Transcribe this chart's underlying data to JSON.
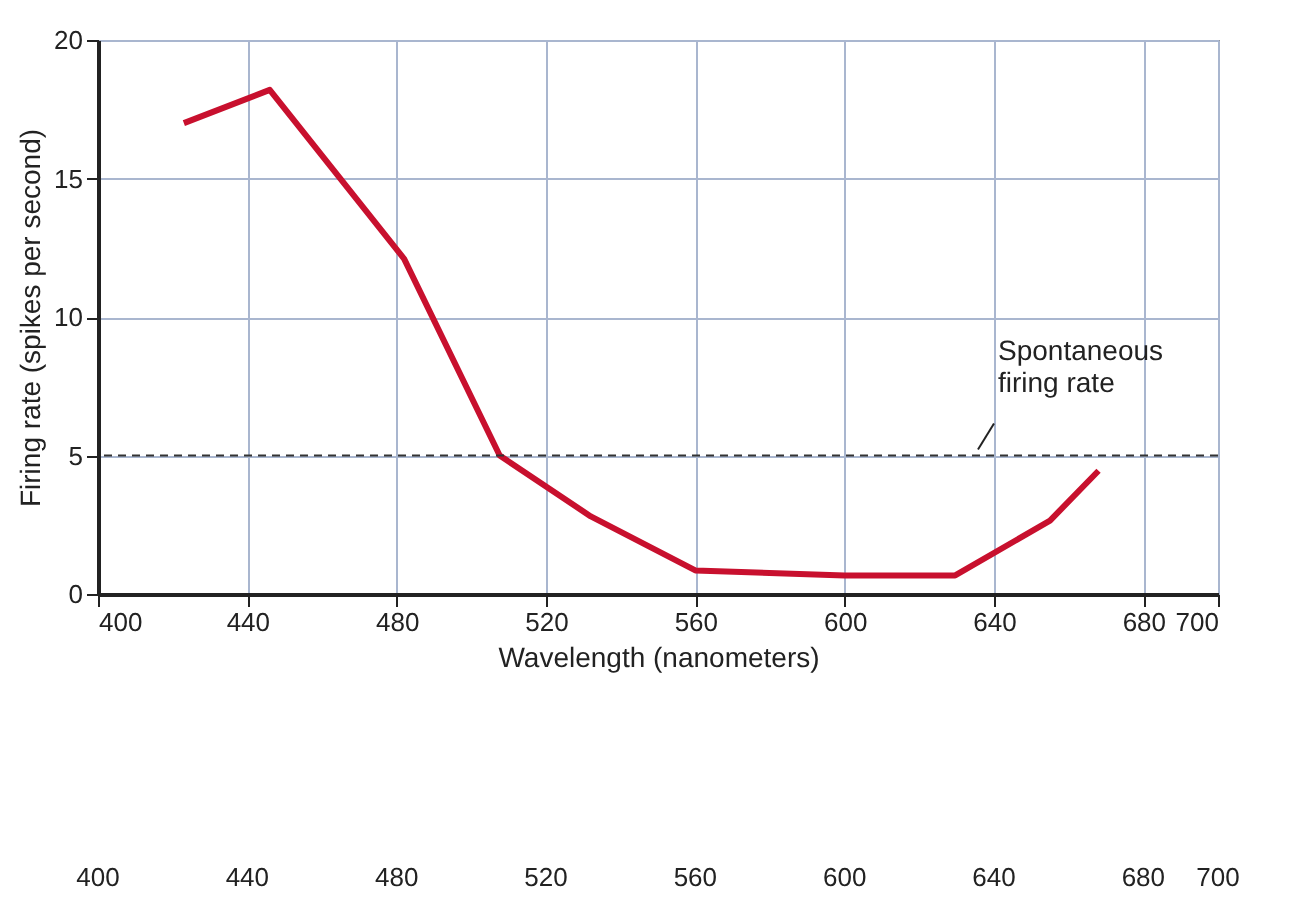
{
  "chart_data": {
    "type": "line",
    "xlabel": "Wavelength (nanometers)",
    "ylabel": "Firing rate (spikes per second)",
    "x": [
      423,
      446,
      482,
      507.6,
      532,
      560,
      600,
      629.6,
      655,
      668
    ],
    "series": [
      {
        "color": "#c8102e",
        "values": [
          17.0,
          18.2,
          12.1,
          5.0,
          2.8,
          0.85,
          0.67,
          0.67,
          2.65,
          4.45
        ]
      }
    ],
    "xlim": [
      400,
      700
    ],
    "xticks": [
      400,
      440,
      480,
      520,
      560,
      600,
      640,
      680,
      700
    ],
    "ylim": [
      0,
      20
    ],
    "yticks": [
      0,
      5,
      10,
      15,
      20
    ],
    "annotations": [
      "400",
      "440",
      "480",
      "520",
      "560",
      "600",
      "640",
      "680",
      "700"
    ],
    "ref_lines": [
      {
        "axis": "y",
        "value": 5,
        "label": "Spontaneous\nfiring rate",
        "color": "#333333",
        "line_style": "dashed"
      }
    ],
    "grid": true,
    "marker": "none",
    "line_style": "solid"
  }
}
